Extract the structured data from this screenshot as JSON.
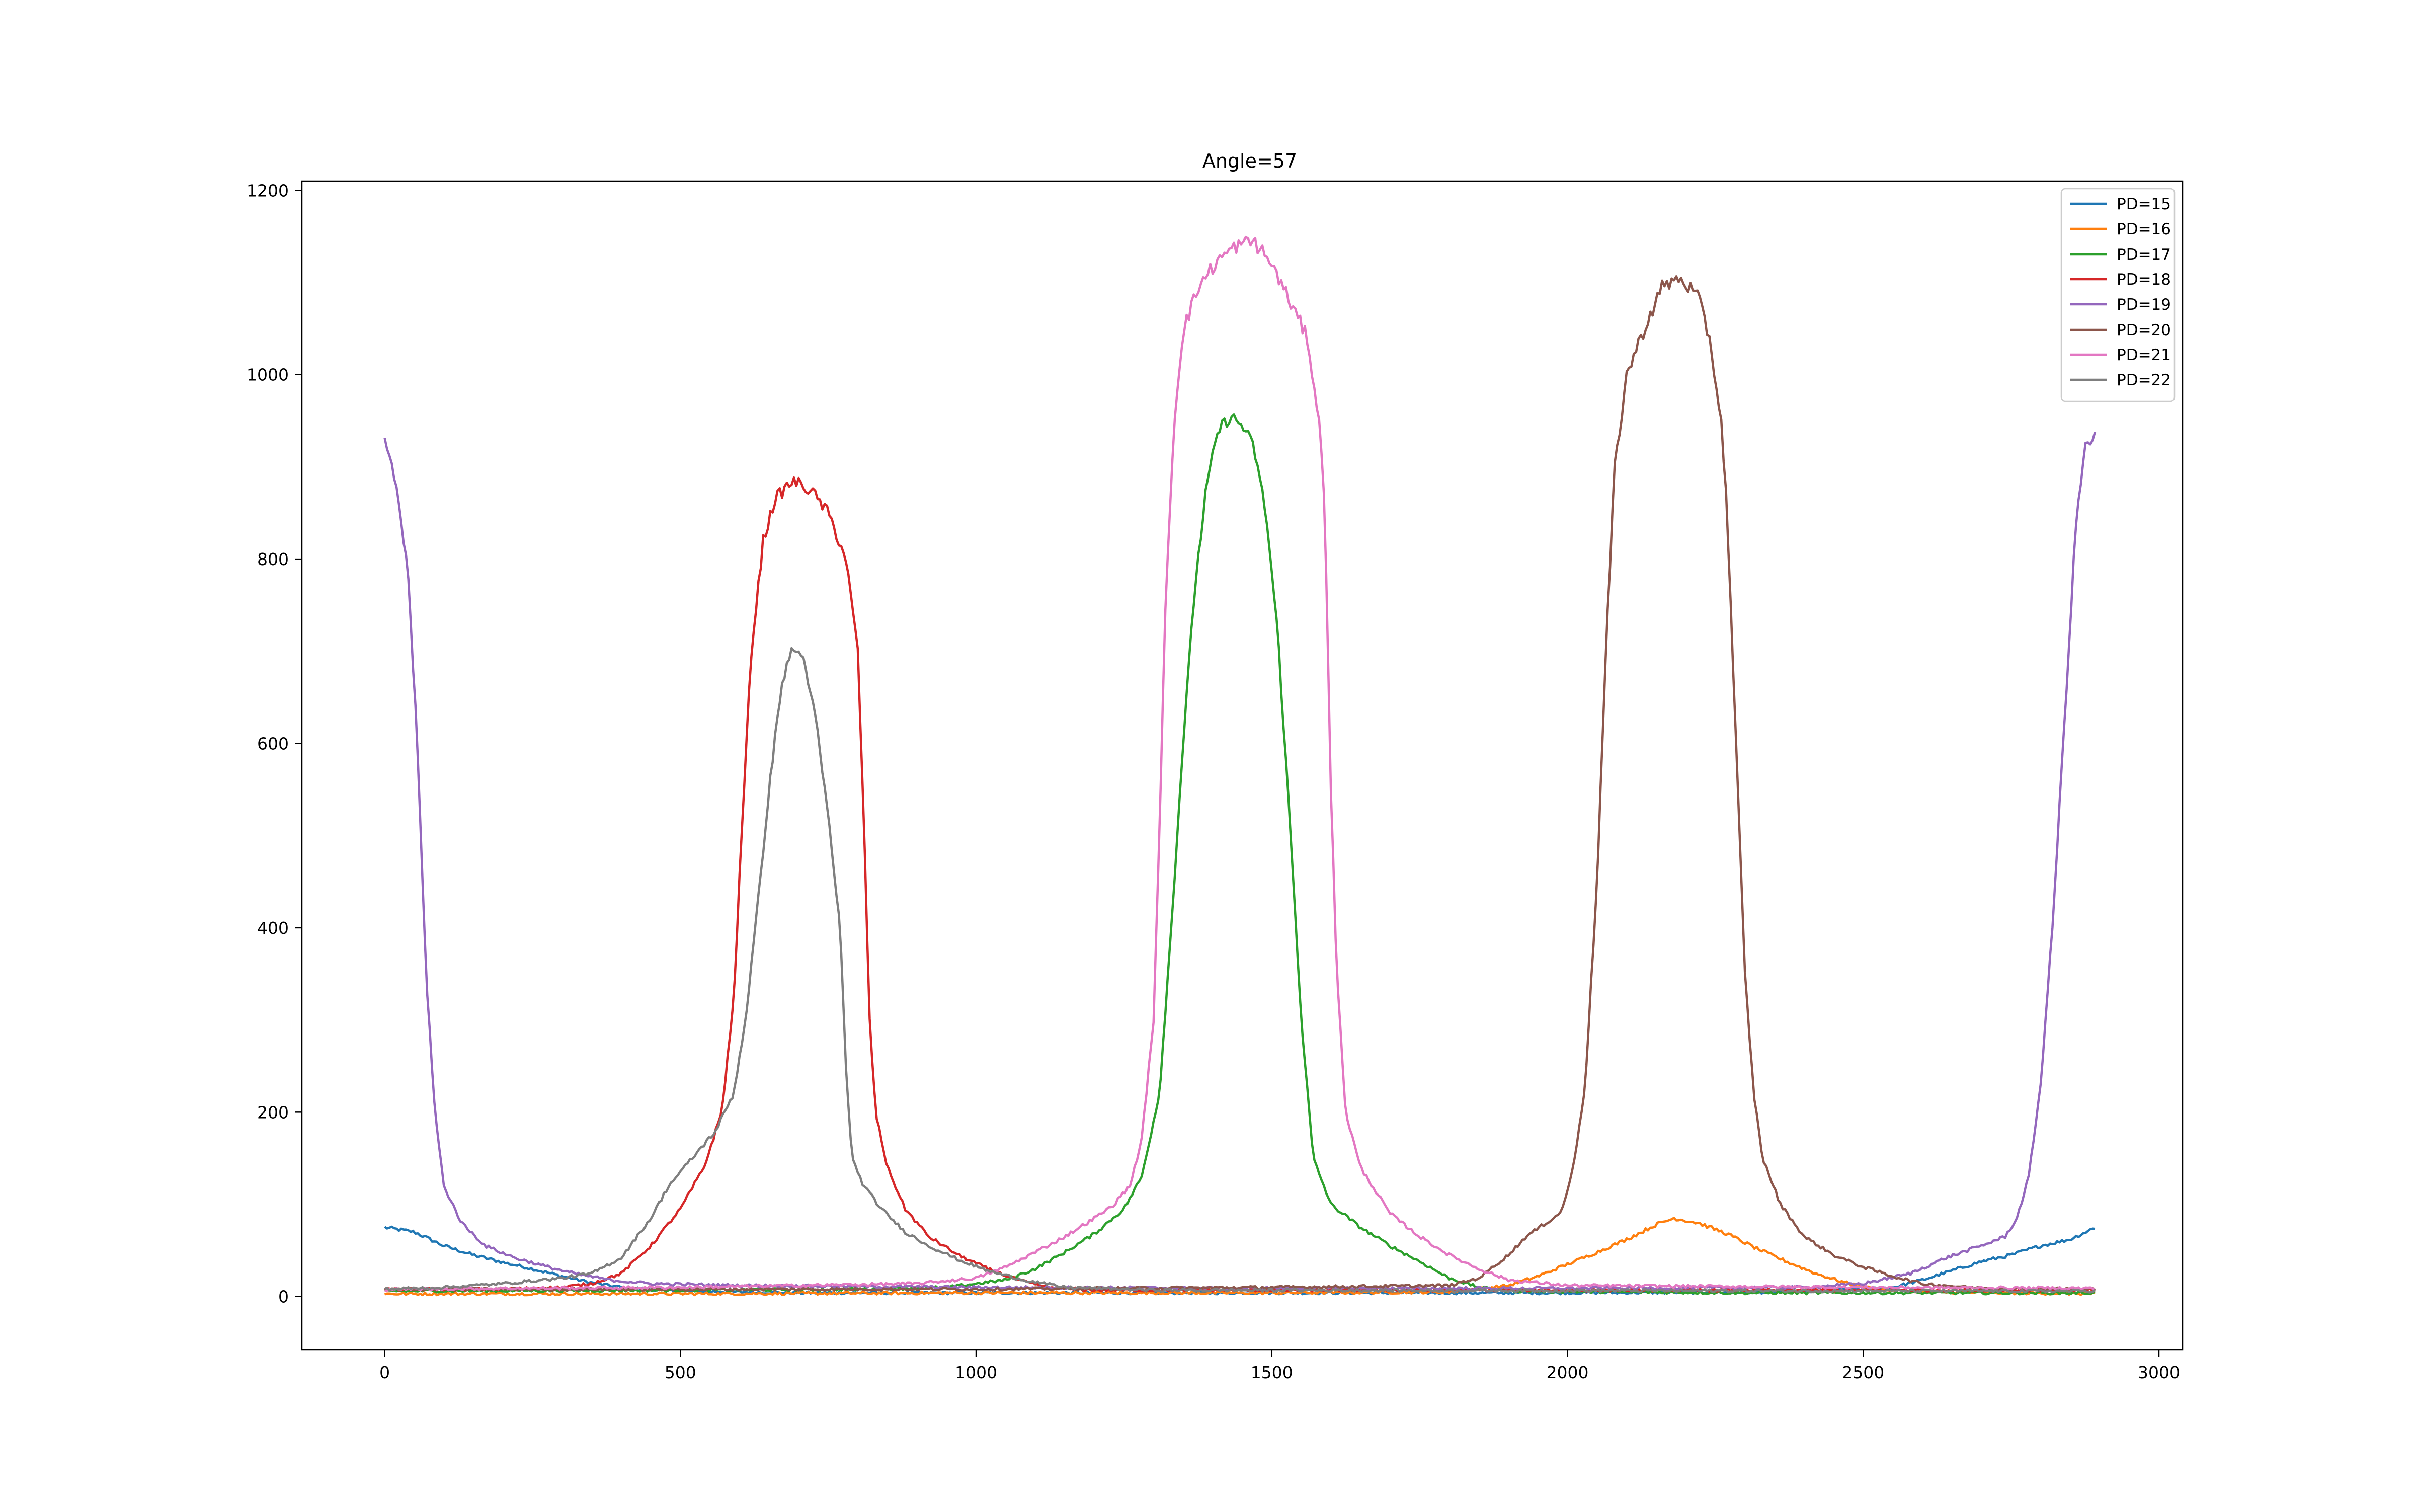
{
  "chart_data": {
    "type": "line",
    "title": "Angle=57",
    "xlabel": "",
    "ylabel": "",
    "xlim": [
      -140,
      3040
    ],
    "ylim": [
      -58,
      1210
    ],
    "xticks": [
      0,
      500,
      1000,
      1500,
      2000,
      2500,
      3000
    ],
    "yticks": [
      0,
      200,
      400,
      600,
      800,
      1000,
      1200
    ],
    "grid": false,
    "legend_position": "top-right",
    "series": [
      {
        "name": "PD=15",
        "color": "#1f77b4",
        "points": [
          [
            0,
            75
          ],
          [
            50,
            70
          ],
          [
            100,
            55
          ],
          [
            150,
            45
          ],
          [
            200,
            37
          ],
          [
            250,
            30
          ],
          [
            300,
            22
          ],
          [
            350,
            15
          ],
          [
            400,
            10
          ],
          [
            500,
            6
          ],
          [
            700,
            4
          ],
          [
            1000,
            4
          ],
          [
            1500,
            4
          ],
          [
            2000,
            4
          ],
          [
            2400,
            5
          ],
          [
            2550,
            10
          ],
          [
            2600,
            18
          ],
          [
            2650,
            28
          ],
          [
            2700,
            38
          ],
          [
            2750,
            45
          ],
          [
            2800,
            55
          ],
          [
            2850,
            62
          ],
          [
            2893,
            75
          ]
        ]
      },
      {
        "name": "PD=16",
        "color": "#ff7f0e",
        "points": [
          [
            0,
            3
          ],
          [
            500,
            3
          ],
          [
            1000,
            4
          ],
          [
            1500,
            4
          ],
          [
            1800,
            5
          ],
          [
            1900,
            12
          ],
          [
            1950,
            22
          ],
          [
            2000,
            35
          ],
          [
            2050,
            48
          ],
          [
            2100,
            62
          ],
          [
            2150,
            78
          ],
          [
            2180,
            85
          ],
          [
            2220,
            80
          ],
          [
            2270,
            68
          ],
          [
            2320,
            52
          ],
          [
            2370,
            38
          ],
          [
            2420,
            25
          ],
          [
            2470,
            15
          ],
          [
            2520,
            8
          ],
          [
            2600,
            5
          ],
          [
            2893,
            3
          ]
        ]
      },
      {
        "name": "PD=17",
        "color": "#2ca02c",
        "points": [
          [
            0,
            6
          ],
          [
            500,
            7
          ],
          [
            800,
            8
          ],
          [
            950,
            10
          ],
          [
            1050,
            18
          ],
          [
            1100,
            30
          ],
          [
            1150,
            48
          ],
          [
            1200,
            68
          ],
          [
            1250,
            95
          ],
          [
            1280,
            130
          ],
          [
            1310,
            220
          ],
          [
            1330,
            400
          ],
          [
            1350,
            600
          ],
          [
            1370,
            770
          ],
          [
            1390,
            880
          ],
          [
            1410,
            940
          ],
          [
            1430,
            955
          ],
          [
            1450,
            945
          ],
          [
            1470,
            920
          ],
          [
            1490,
            850
          ],
          [
            1510,
            720
          ],
          [
            1530,
            520
          ],
          [
            1550,
            300
          ],
          [
            1570,
            150
          ],
          [
            1600,
            100
          ],
          [
            1650,
            75
          ],
          [
            1700,
            55
          ],
          [
            1750,
            38
          ],
          [
            1800,
            20
          ],
          [
            1850,
            10
          ],
          [
            1900,
            6
          ],
          [
            2300,
            4
          ],
          [
            2893,
            4
          ]
        ]
      },
      {
        "name": "PD=18",
        "color": "#d62728",
        "points": [
          [
            0,
            8
          ],
          [
            200,
            8
          ],
          [
            300,
            10
          ],
          [
            350,
            14
          ],
          [
            400,
            25
          ],
          [
            450,
            55
          ],
          [
            500,
            95
          ],
          [
            540,
            140
          ],
          [
            570,
            200
          ],
          [
            590,
            320
          ],
          [
            605,
            520
          ],
          [
            620,
            700
          ],
          [
            640,
            820
          ],
          [
            660,
            865
          ],
          [
            690,
            885
          ],
          [
            720,
            875
          ],
          [
            750,
            850
          ],
          [
            780,
            800
          ],
          [
            800,
            700
          ],
          [
            810,
            520
          ],
          [
            820,
            300
          ],
          [
            830,
            200
          ],
          [
            850,
            140
          ],
          [
            880,
            95
          ],
          [
            920,
            65
          ],
          [
            970,
            45
          ],
          [
            1020,
            30
          ],
          [
            1070,
            18
          ],
          [
            1120,
            10
          ],
          [
            1200,
            7
          ],
          [
            2893,
            7
          ]
        ]
      },
      {
        "name": "PD=19",
        "color": "#9467bd",
        "points": [
          [
            0,
            925
          ],
          [
            20,
            880
          ],
          [
            40,
            780
          ],
          [
            55,
            600
          ],
          [
            70,
            350
          ],
          [
            85,
            200
          ],
          [
            100,
            120
          ],
          [
            130,
            80
          ],
          [
            170,
            55
          ],
          [
            220,
            42
          ],
          [
            270,
            33
          ],
          [
            320,
            25
          ],
          [
            380,
            18
          ],
          [
            450,
            14
          ],
          [
            600,
            12
          ],
          [
            1000,
            10
          ],
          [
            1500,
            9
          ],
          [
            2000,
            9
          ],
          [
            2400,
            10
          ],
          [
            2500,
            14
          ],
          [
            2580,
            25
          ],
          [
            2640,
            42
          ],
          [
            2700,
            55
          ],
          [
            2740,
            65
          ],
          [
            2760,
            85
          ],
          [
            2780,
            130
          ],
          [
            2800,
            230
          ],
          [
            2820,
            400
          ],
          [
            2840,
            620
          ],
          [
            2860,
            840
          ],
          [
            2875,
            920
          ],
          [
            2893,
            935
          ]
        ]
      },
      {
        "name": "PD=20",
        "color": "#8c564b",
        "points": [
          [
            0,
            8
          ],
          [
            500,
            8
          ],
          [
            1000,
            8
          ],
          [
            1500,
            10
          ],
          [
            1800,
            12
          ],
          [
            1850,
            20
          ],
          [
            1900,
            45
          ],
          [
            1930,
            65
          ],
          [
            1960,
            78
          ],
          [
            1990,
            92
          ],
          [
            2010,
            140
          ],
          [
            2030,
            230
          ],
          [
            2050,
            450
          ],
          [
            2065,
            700
          ],
          [
            2080,
            900
          ],
          [
            2100,
            1000
          ],
          [
            2130,
            1050
          ],
          [
            2160,
            1095
          ],
          [
            2190,
            1105
          ],
          [
            2220,
            1085
          ],
          [
            2240,
            1040
          ],
          [
            2260,
            950
          ],
          [
            2270,
            850
          ],
          [
            2285,
            600
          ],
          [
            2300,
            350
          ],
          [
            2315,
            220
          ],
          [
            2330,
            150
          ],
          [
            2360,
            100
          ],
          [
            2400,
            65
          ],
          [
            2450,
            45
          ],
          [
            2500,
            32
          ],
          [
            2550,
            22
          ],
          [
            2600,
            14
          ],
          [
            2700,
            9
          ],
          [
            2893,
            8
          ]
        ]
      },
      {
        "name": "PD=21",
        "color": "#e377c2",
        "points": [
          [
            0,
            8
          ],
          [
            500,
            10
          ],
          [
            900,
            14
          ],
          [
            1000,
            20
          ],
          [
            1050,
            32
          ],
          [
            1100,
            48
          ],
          [
            1150,
            65
          ],
          [
            1200,
            85
          ],
          [
            1230,
            98
          ],
          [
            1260,
            120
          ],
          [
            1280,
            170
          ],
          [
            1300,
            300
          ],
          [
            1310,
            500
          ],
          [
            1320,
            750
          ],
          [
            1335,
            950
          ],
          [
            1350,
            1050
          ],
          [
            1380,
            1100
          ],
          [
            1410,
            1125
          ],
          [
            1440,
            1140
          ],
          [
            1470,
            1145
          ],
          [
            1500,
            1120
          ],
          [
            1530,
            1080
          ],
          [
            1560,
            1040
          ],
          [
            1580,
            950
          ],
          [
            1590,
            850
          ],
          [
            1600,
            550
          ],
          [
            1610,
            350
          ],
          [
            1625,
            200
          ],
          [
            1650,
            140
          ],
          [
            1700,
            90
          ],
          [
            1750,
            65
          ],
          [
            1800,
            45
          ],
          [
            1850,
            30
          ],
          [
            1900,
            18
          ],
          [
            2000,
            12
          ],
          [
            2500,
            10
          ],
          [
            2893,
            9
          ]
        ]
      },
      {
        "name": "PD=22",
        "color": "#7f7f7f",
        "points": [
          [
            0,
            8
          ],
          [
            100,
            10
          ],
          [
            200,
            14
          ],
          [
            300,
            20
          ],
          [
            350,
            25
          ],
          [
            400,
            42
          ],
          [
            450,
            85
          ],
          [
            480,
            120
          ],
          [
            520,
            150
          ],
          [
            560,
            180
          ],
          [
            590,
            220
          ],
          [
            610,
            300
          ],
          [
            630,
            420
          ],
          [
            650,
            550
          ],
          [
            670,
            660
          ],
          [
            690,
            705
          ],
          [
            710,
            690
          ],
          [
            730,
            620
          ],
          [
            750,
            520
          ],
          [
            770,
            400
          ],
          [
            780,
            250
          ],
          [
            790,
            150
          ],
          [
            810,
            120
          ],
          [
            840,
            95
          ],
          [
            880,
            70
          ],
          [
            920,
            55
          ],
          [
            970,
            40
          ],
          [
            1020,
            28
          ],
          [
            1080,
            18
          ],
          [
            1150,
            10
          ],
          [
            1300,
            7
          ],
          [
            2893,
            6
          ]
        ]
      }
    ]
  }
}
